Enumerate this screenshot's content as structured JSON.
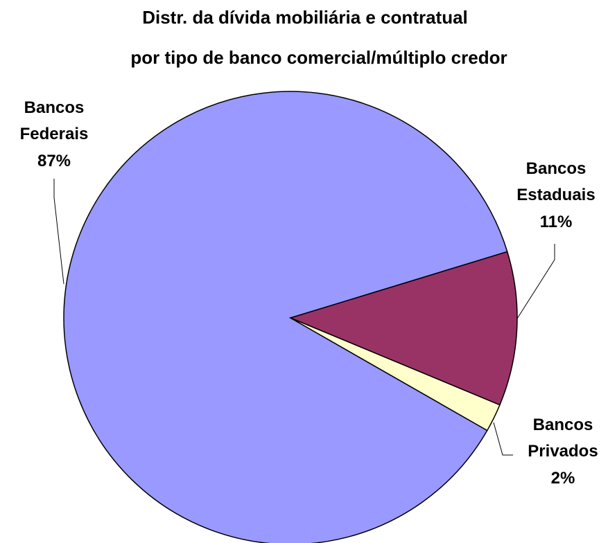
{
  "chart_data": {
    "type": "pie",
    "title": [
      "Distr. da dívida mobiliária e contratual",
      "por tipo de banco comercial/múltiplo credor"
    ],
    "categories": [
      "Bancos Federais",
      "Bancos Estaduais",
      "Bancos Privados"
    ],
    "values": [
      87,
      11,
      2
    ],
    "value_labels": [
      "87%",
      "11%",
      "2%"
    ],
    "colors": [
      "#9999ff",
      "#993366",
      "#ffffcc"
    ]
  }
}
